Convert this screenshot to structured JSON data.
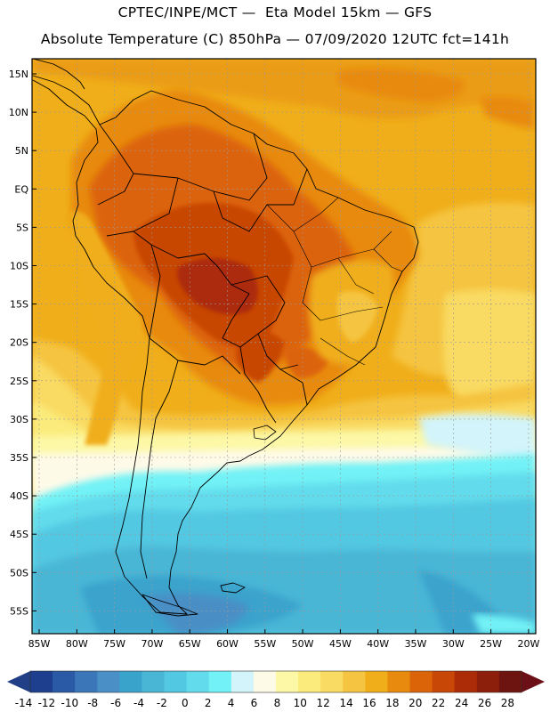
{
  "header": {
    "line1": "CPTEC/INPE/MCT —  Eta Model 15km — GFS",
    "line2": "Absolute Temperature (C) 850hPa — 07/09/2020 12UTC fct=141h"
  },
  "axes": {
    "lat_labels": [
      "15N",
      "10N",
      "5N",
      "EQ",
      "5S",
      "10S",
      "15S",
      "20S",
      "25S",
      "30S",
      "35S",
      "40S",
      "45S",
      "50S",
      "55S"
    ],
    "lon_labels": [
      "85W",
      "80W",
      "75W",
      "70W",
      "65W",
      "60W",
      "55W",
      "50W",
      "45W",
      "40W",
      "35W",
      "30W",
      "25W",
      "20W"
    ]
  },
  "colorbar": {
    "labels": [
      "-14",
      "-12",
      "-10",
      "-8",
      "-6",
      "-4",
      "-2",
      "0",
      "2",
      "4",
      "6",
      "8",
      "10",
      "12",
      "14",
      "16",
      "18",
      "20",
      "22",
      "24",
      "26",
      "28"
    ],
    "colors": [
      "#1e3f8e",
      "#2a5aa6",
      "#3a76b8",
      "#4a8fc6",
      "#3aa3cc",
      "#4ab6d6",
      "#52c8e2",
      "#62dcec",
      "#72f2f6",
      "#d2f4fa",
      "#fefae8",
      "#fcf8a6",
      "#fbeb7c",
      "#f9da62",
      "#f5c440",
      "#f0ae1a",
      "#e88a0e",
      "#dc6408",
      "#c84606",
      "#ac2c08",
      "#8c1e0c",
      "#6e1410"
    ],
    "low_end_color": "#213f86",
    "high_end_color": "#6a1016"
  }
}
